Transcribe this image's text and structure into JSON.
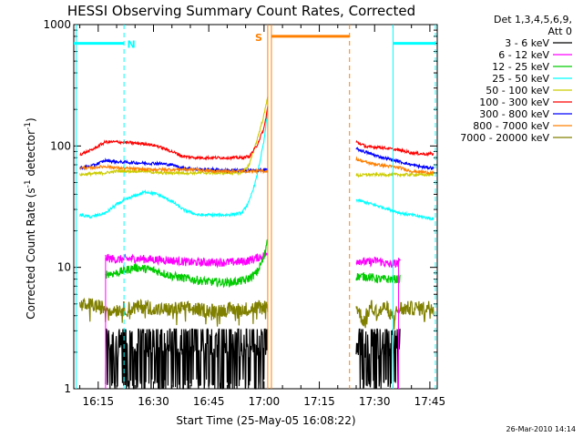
{
  "chart_data": {
    "type": "line",
    "title": "HESSI Observing Summary Count Rates, Corrected",
    "xlabel": "Start Time (25-May-05 16:08:22)",
    "ylabel_parts": [
      "Corrected Count Rate (s",
      "-1",
      " detector",
      "-1",
      ")"
    ],
    "ylog": true,
    "xlim_minutes": [
      8.37,
      107.0
    ],
    "ylim": [
      1,
      1000
    ],
    "grid": false,
    "legend_placement": "right-outside",
    "legend_header": [
      "Det 1,3,4,5,6,9,",
      "Att 0"
    ],
    "y_ticks": [
      {
        "value": 1,
        "label": "1"
      },
      {
        "value": 10,
        "label": "10"
      },
      {
        "value": 100,
        "label": "100"
      },
      {
        "value": 1000,
        "label": "1000"
      }
    ],
    "x_ticks": [
      {
        "minute": 15,
        "label": "16:15"
      },
      {
        "minute": 30,
        "label": "16:30"
      },
      {
        "minute": 45,
        "label": "16:45"
      },
      {
        "minute": 60,
        "label": "17:00"
      },
      {
        "minute": 75,
        "label": "17:15"
      },
      {
        "minute": 90,
        "label": "17:30"
      },
      {
        "minute": 105,
        "label": "17:45"
      }
    ],
    "series": [
      {
        "name": "3 - 6 keV",
        "color": "#000000",
        "segments": [
          {
            "x": [
              17,
              20,
              23,
              26,
              29,
              32,
              35,
              38,
              41,
              44,
              47,
              50,
              53,
              56,
              59,
              61
            ],
            "y": [
              2.2,
              2.8,
              1.8,
              2.6,
              1.5,
              2.4,
              1.0,
              1.5,
              1.6,
              1.2,
              1.7,
              1.4,
              1.3,
              1.6,
              1.4,
              1.8
            ]
          },
          {
            "x": [
              85,
              87,
              89,
              91,
              93,
              95,
              97
            ],
            "y": [
              2.3,
              1.6,
              2.5,
              1.5,
              2.0,
              1.8,
              1.7
            ]
          }
        ]
      },
      {
        "name": "6 - 12 keV",
        "color": "#ff00ff",
        "segments": [
          {
            "x": [
              17,
              20,
              25,
              30,
              35,
              40,
              45,
              50,
              55,
              60,
              61
            ],
            "y": [
              12,
              11.6,
              11.8,
              11.6,
              11.4,
              11.0,
              11.0,
              11.0,
              11.2,
              12.5,
              13
            ]
          },
          {
            "x": [
              85,
              88,
              91,
              94,
              97
            ],
            "y": [
              11.5,
              11.0,
              11.4,
              10.5,
              11.0
            ]
          }
        ]
      },
      {
        "name": "12 - 25 keV",
        "color": "#00cc00",
        "segments": [
          {
            "x": [
              17,
              20,
              25,
              30,
              35,
              40,
              45,
              50,
              55,
              58,
              60,
              61
            ],
            "y": [
              8.8,
              9.0,
              10.0,
              9.5,
              8.5,
              8.0,
              7.6,
              7.5,
              7.8,
              9.0,
              12,
              18
            ]
          },
          {
            "x": [
              85,
              88,
              91,
              94,
              97
            ],
            "y": [
              8.4,
              8.4,
              8.0,
              8.0,
              8.0
            ]
          }
        ]
      },
      {
        "name": "25 - 50 keV",
        "color": "#00ffff",
        "segments": [
          {
            "x": [
              10,
              13,
              17,
              20,
              24,
              28,
              31,
              35,
              38,
              42,
              46,
              50,
              54,
              56,
              58,
              60,
              61
            ],
            "y": [
              27,
              26,
              28,
              33,
              38,
              42,
              40,
              35,
              30,
              27,
              27,
              27,
              28,
              35,
              55,
              110,
              200
            ]
          },
          {
            "x": [
              85,
              88,
              91,
              94,
              97,
              100,
              103,
              106
            ],
            "y": [
              36,
              34,
              32,
              30,
              28,
              27,
              26,
              25
            ]
          }
        ]
      },
      {
        "name": "50 - 100 keV",
        "color": "#cccc00",
        "segments": [
          {
            "x": [
              10,
              13,
              17,
              20,
              24,
              28,
              31,
              35,
              38,
              42,
              46,
              50,
              54,
              56,
              58,
              60,
              61
            ],
            "y": [
              58,
              59,
              60,
              62,
              62,
              62,
              60,
              60,
              60,
              60,
              60,
              60,
              60,
              70,
              110,
              180,
              260
            ]
          },
          {
            "x": [
              85,
              88,
              91,
              94,
              97,
              100,
              103,
              106
            ],
            "y": [
              57,
              58,
              58,
              58,
              58,
              58,
              58,
              58
            ]
          }
        ]
      },
      {
        "name": "100 - 300 keV",
        "color": "#ff0000",
        "segments": [
          {
            "x": [
              10,
              13,
              17,
              20,
              24,
              28,
              31,
              35,
              38,
              42,
              46,
              50,
              54,
              56,
              58,
              60,
              61
            ],
            "y": [
              85,
              92,
              108,
              108,
              106,
              104,
              100,
              90,
              82,
              80,
              80,
              80,
              80,
              82,
              100,
              140,
              210
            ]
          },
          {
            "x": [
              85,
              88,
              91,
              94,
              97,
              100,
              103,
              106
            ],
            "y": [
              108,
              98,
              98,
              95,
              92,
              88,
              86,
              86
            ]
          }
        ]
      },
      {
        "name": "300 - 800 keV",
        "color": "#0000ff",
        "segments": [
          {
            "x": [
              10,
              13,
              17,
              20,
              24,
              28,
              31,
              35,
              38,
              42,
              46,
              50,
              54,
              56,
              58,
              60,
              61
            ],
            "y": [
              66,
              68,
              76,
              74,
              73,
              72,
              72,
              70,
              66,
              64,
              64,
              63,
              63,
              63,
              63,
              63,
              64
            ]
          },
          {
            "x": [
              85,
              88,
              91,
              94,
              97,
              100,
              103,
              106
            ],
            "y": [
              95,
              88,
              82,
              78,
              74,
              70,
              67,
              66
            ]
          }
        ]
      },
      {
        "name": "800 - 7000 keV",
        "color": "#ff8000",
        "segments": [
          {
            "x": [
              10,
              13,
              17,
              20,
              24,
              28,
              31,
              35,
              38,
              42,
              46,
              50,
              54,
              56,
              58,
              60,
              61
            ],
            "y": [
              66,
              66,
              68,
              66,
              65,
              64,
              64,
              64,
              64,
              64,
              62,
              62,
              62,
              62,
              62,
              62,
              62
            ]
          },
          {
            "x": [
              85,
              88,
              91,
              94,
              97,
              100,
              103,
              106
            ],
            "y": [
              78,
              73,
              70,
              68,
              66,
              62,
              61,
              60
            ]
          }
        ]
      },
      {
        "name": "7000 - 20000 keV",
        "color": "#808000",
        "segments": [
          {
            "x": [
              10,
              13,
              17,
              20,
              24,
              28,
              31,
              35,
              38,
              42,
              46,
              50,
              54,
              57,
              60,
              61
            ],
            "y": [
              4.8,
              4.9,
              4.6,
              4.5,
              4.6,
              4.8,
              4.5,
              4.5,
              4.6,
              4.5,
              4.4,
              4.5,
              4.5,
              4.6,
              4.8,
              4.8
            ]
          },
          {
            "x": [
              85,
              87,
              89,
              91,
              93,
              95,
              97,
              100,
              103,
              106
            ],
            "y": [
              4.8,
              3.6,
              4.8,
              4.2,
              4.8,
              4.0,
              4.6,
              4.6,
              4.6,
              4.8
            ]
          }
        ]
      }
    ],
    "flags": [
      {
        "label": "N",
        "color": "#00ffff",
        "level": 700,
        "segments": [
          [
            8.37,
            22.0
          ],
          [
            95.0,
            106.5
          ]
        ],
        "lines": [
          {
            "minute": 22.0,
            "style": "dashed"
          },
          {
            "minute": 95.0,
            "style": "solid"
          },
          {
            "minute": 106.5,
            "style": "dashed"
          }
        ]
      },
      {
        "label": "S",
        "color": "#ff8000",
        "level": 800,
        "segments": [
          [
            62.0,
            83.2
          ]
        ],
        "lines": [
          {
            "minute": 61.0,
            "style": "solid"
          },
          {
            "minute": 62.0,
            "style": "solid"
          },
          {
            "minute": 83.2,
            "style": "dashed"
          }
        ]
      }
    ],
    "cyan_left_line_minute": 9.0,
    "magenta_drop_minutes": [
      17.0,
      96.5
    ]
  },
  "timestamp": "26-Mar-2010 14:14"
}
